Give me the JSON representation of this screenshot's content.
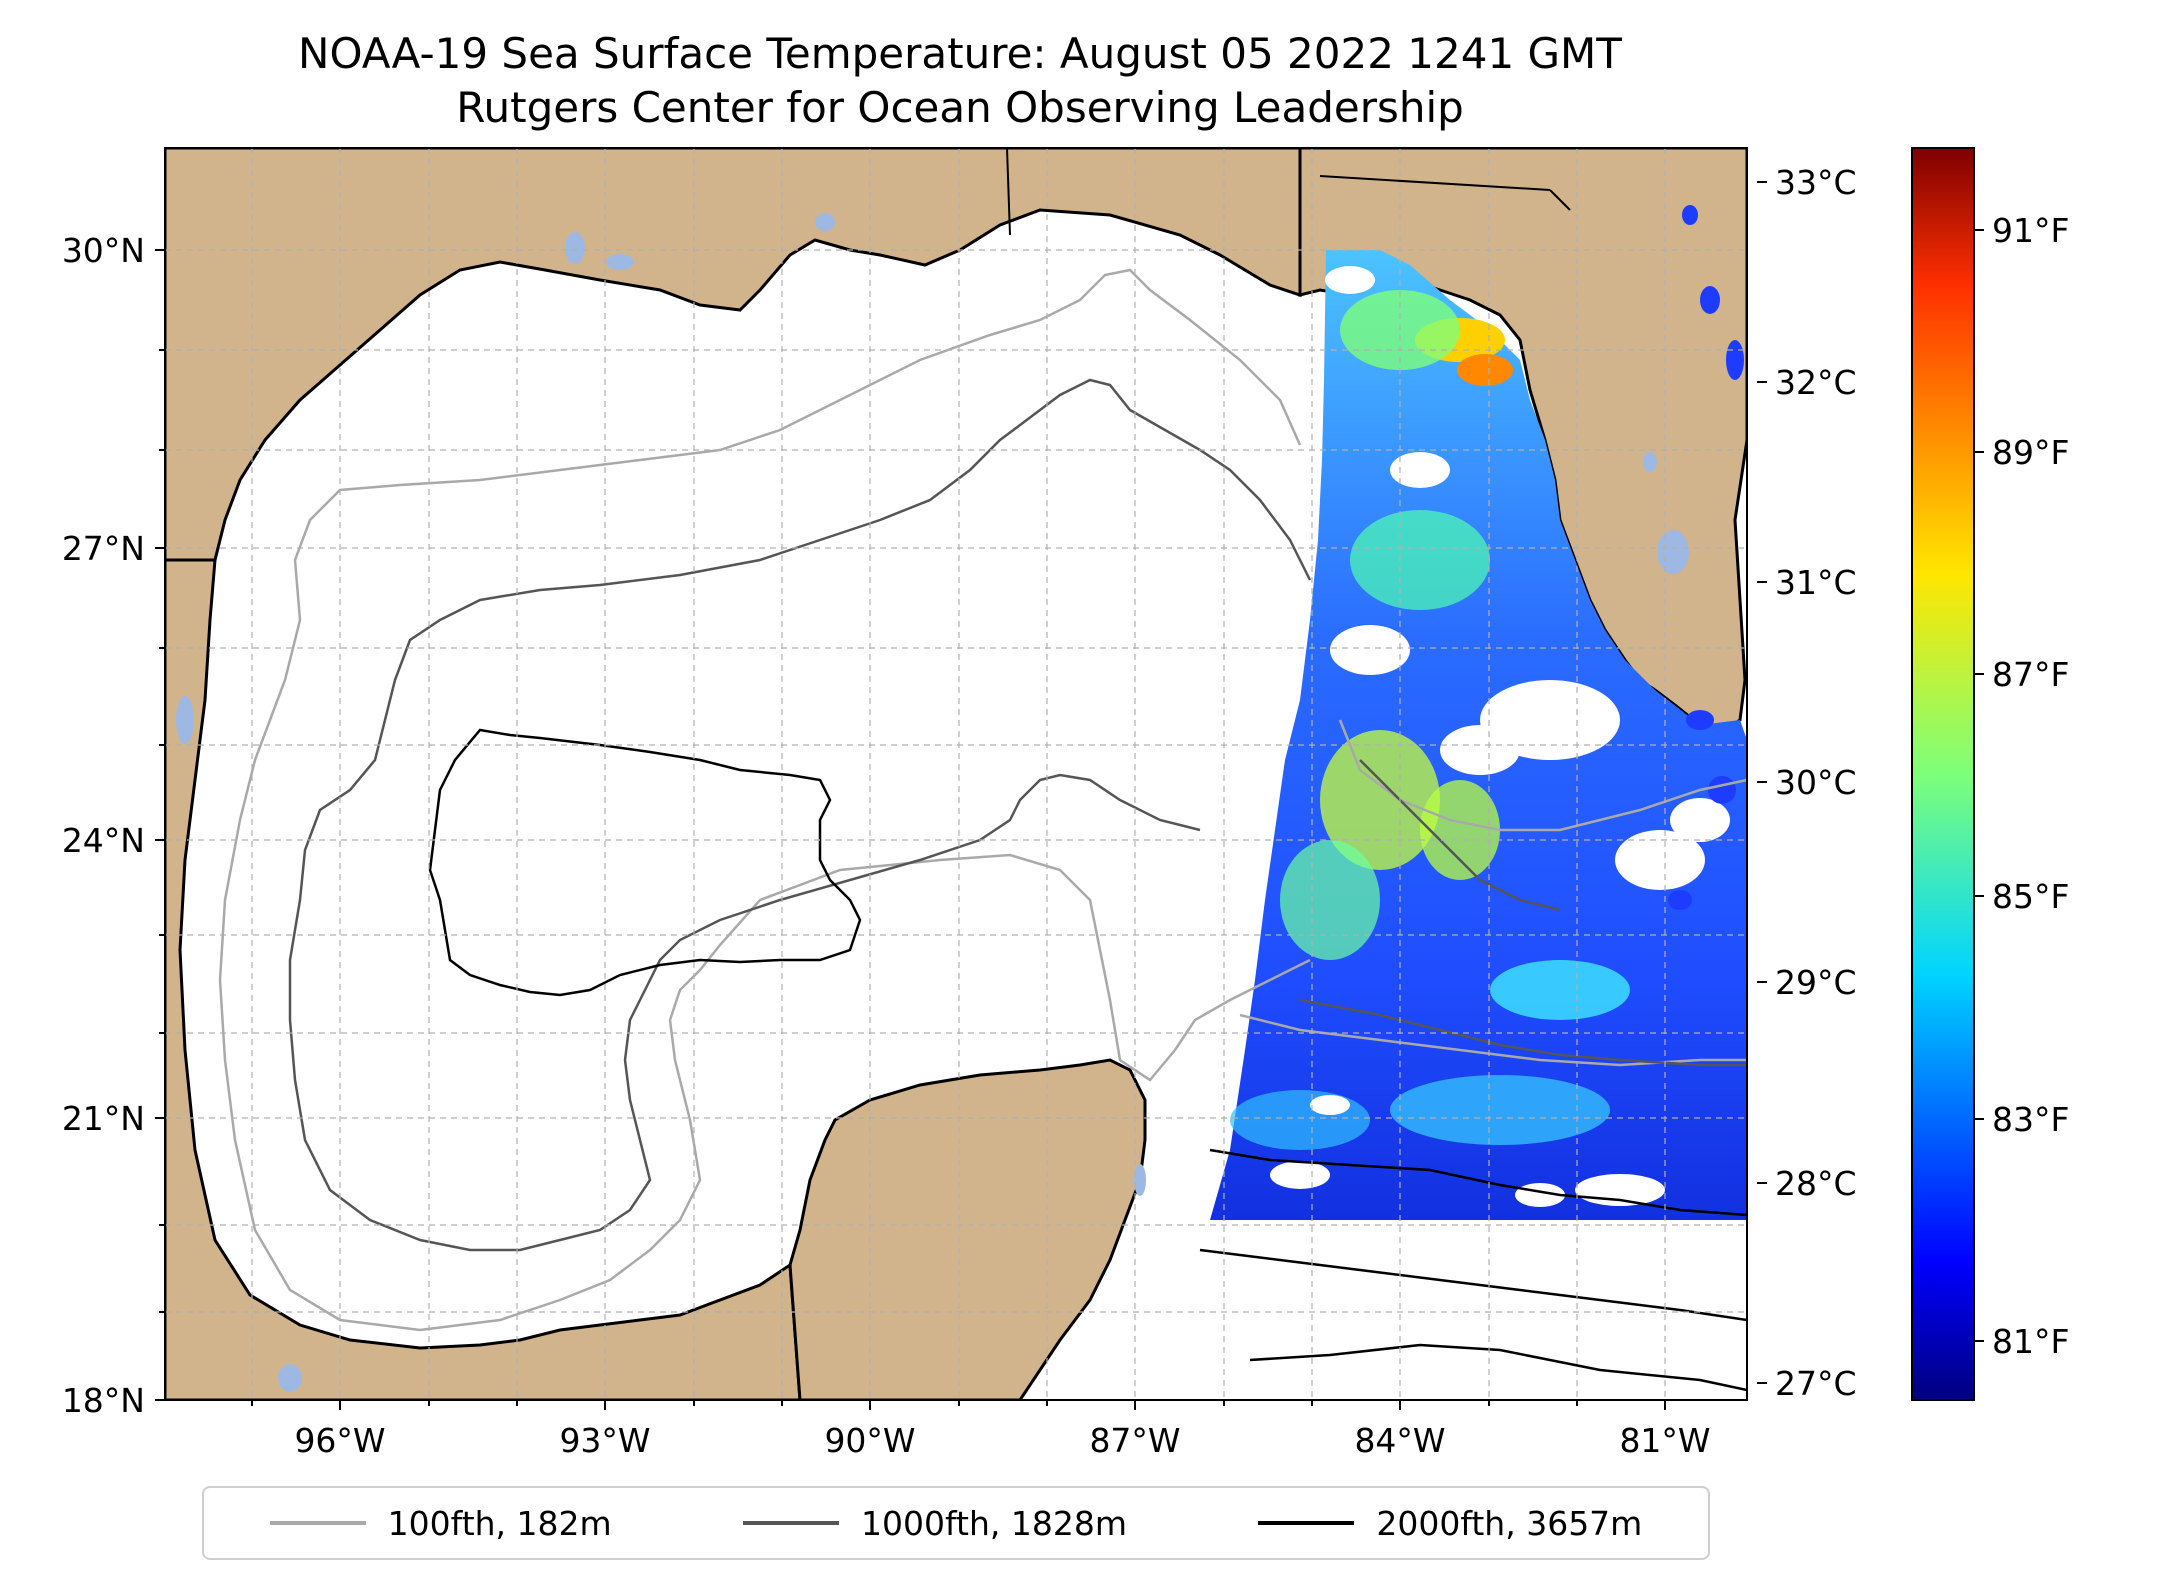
{
  "title": "NOAA-19 Sea Surface Temperature: August 05 2022 1241 GMT",
  "subtitle": "Rutgers Center for Ocean Observing Leadership",
  "map": {
    "lon_range": [
      -98.0,
      -80.2
    ],
    "lat_range": [
      18.0,
      31.0
    ],
    "lat_ticks": [
      {
        "value": 18,
        "label": "18°N"
      },
      {
        "value": 21,
        "label": "21°N"
      },
      {
        "value": 24,
        "label": "24°N"
      },
      {
        "value": 27,
        "label": "27°N"
      },
      {
        "value": 30,
        "label": "30°N"
      }
    ],
    "lon_ticks": [
      {
        "value": -96,
        "label": "96°W"
      },
      {
        "value": -93,
        "label": "93°W"
      },
      {
        "value": -90,
        "label": "90°W"
      },
      {
        "value": -87,
        "label": "87°W"
      },
      {
        "value": -84,
        "label": "84°W"
      },
      {
        "value": -81,
        "label": "81°W"
      }
    ],
    "gridlines": true,
    "land_color": "#D2B48C",
    "water_color": "#ffffff",
    "lake_color": "#9db9e3"
  },
  "colorbar": {
    "colormap": "jet",
    "range_c": [
      26.9,
      33.2
    ],
    "celsius_ticks": [
      {
        "value": 27,
        "label": "27°C"
      },
      {
        "value": 28,
        "label": "28°C"
      },
      {
        "value": 29,
        "label": "29°C"
      },
      {
        "value": 30,
        "label": "30°C"
      },
      {
        "value": 31,
        "label": "31°C"
      },
      {
        "value": 32,
        "label": "32°C"
      },
      {
        "value": 33,
        "label": "33°C"
      }
    ],
    "fahrenheit_ticks": [
      {
        "value": 81,
        "label": "81°F"
      },
      {
        "value": 83,
        "label": "83°F"
      },
      {
        "value": 85,
        "label": "85°F"
      },
      {
        "value": 87,
        "label": "87°F"
      },
      {
        "value": 89,
        "label": "89°F"
      },
      {
        "value": 91,
        "label": "91°F"
      }
    ]
  },
  "legend": {
    "items": [
      {
        "label": "100fth, 182m",
        "color": "#a9a9a9"
      },
      {
        "label": "1000fth, 1828m",
        "color": "#555555"
      },
      {
        "label": "2000fth, 3657m",
        "color": "#000000"
      }
    ]
  }
}
